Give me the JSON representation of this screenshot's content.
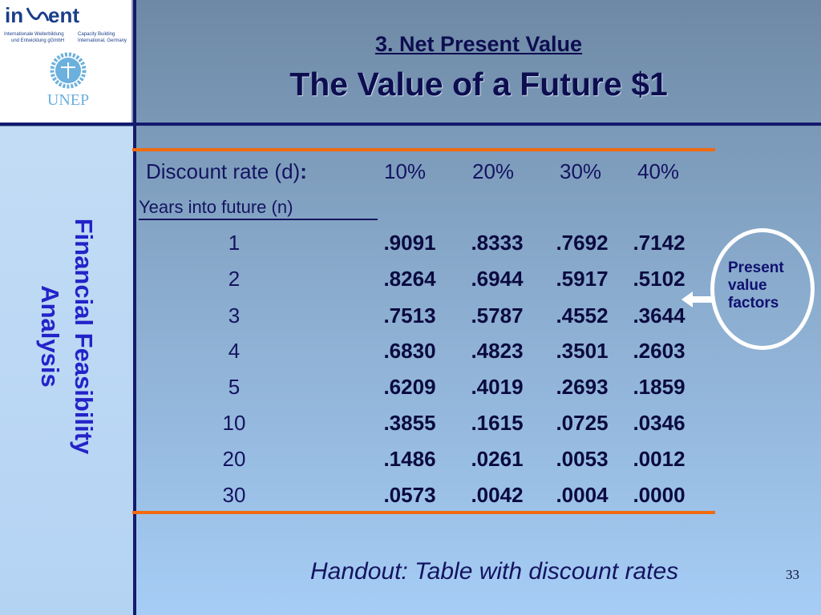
{
  "logo": {
    "brand": "inWent",
    "line1": "Internationale Weiterbildung und Entwicklung gGmbH",
    "line2": "Capacity Building International, Germany",
    "org": "UNEP"
  },
  "sidebar": {
    "line1": "Financial Feasibility",
    "line2": "Analysis"
  },
  "title": {
    "line1": "3. Net Present Value",
    "line2": "The Value of a Future $1"
  },
  "table": {
    "rate_label": "Discount rate (d)",
    "rate_colon": ":",
    "rates": [
      "10%",
      "20%",
      "30%",
      "40%"
    ],
    "years_label": "Years into future (n)",
    "rows": [
      {
        "n": "1",
        "v": [
          ".9091",
          ".8333",
          ".7692",
          ".7142"
        ]
      },
      {
        "n": "2",
        "v": [
          ".8264",
          ".6944",
          ".5917",
          ".5102"
        ]
      },
      {
        "n": "3",
        "v": [
          ".7513",
          ".5787",
          ".4552",
          ".3644"
        ]
      },
      {
        "n": "4",
        "v": [
          ".6830",
          ".4823",
          ".3501",
          ".2603"
        ]
      },
      {
        "n": "5",
        "v": [
          ".6209",
          ".4019",
          ".2693",
          ".1859"
        ]
      },
      {
        "n": "10",
        "v": [
          ".3855",
          ".1615",
          ".0725",
          ".0346"
        ]
      },
      {
        "n": "20",
        "v": [
          ".1486",
          ".0261",
          ".0053",
          ".0012"
        ]
      },
      {
        "n": "30",
        "v": [
          ".0573",
          ".0042",
          ".0004",
          ".0000"
        ]
      }
    ]
  },
  "callout": {
    "line1": "Present",
    "line2": "value",
    "line3": "factors"
  },
  "handout": "Handout: Table with discount rates",
  "page_number": "33",
  "colors": {
    "accent_rule": "#f26a10",
    "frame": "#141a6e",
    "sidebar_text": "#2323c8"
  }
}
